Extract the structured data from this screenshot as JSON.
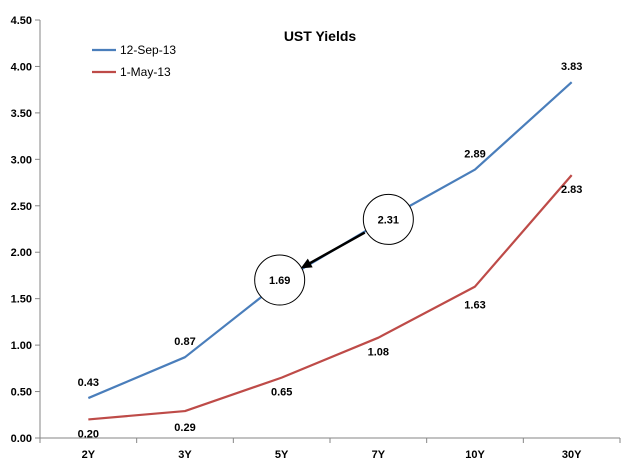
{
  "chart_data": {
    "type": "line",
    "title": "UST Yields",
    "xlabel": "",
    "ylabel": "",
    "categories": [
      "2Y",
      "3Y",
      "5Y",
      "7Y",
      "10Y",
      "30Y"
    ],
    "ylim": [
      0,
      4.5
    ],
    "yticks": [
      "0.00",
      "0.50",
      "1.00",
      "1.50",
      "2.00",
      "2.50",
      "3.00",
      "3.50",
      "4.00",
      "4.50"
    ],
    "grid": false,
    "legend_position": "top-left",
    "series": [
      {
        "name": "12-Sep-13",
        "color": "#4a7ebb",
        "values": [
          0.43,
          0.87,
          1.69,
          2.31,
          2.89,
          3.83
        ],
        "labels": [
          "0.43",
          "0.87",
          "1.69",
          "2.31",
          "2.89",
          "3.83"
        ]
      },
      {
        "name": "1-May-13",
        "color": "#be4b48",
        "values": [
          0.2,
          0.29,
          0.65,
          1.08,
          1.63,
          2.83
        ],
        "labels": [
          "0.20",
          "0.29",
          "0.65",
          "1.08",
          "1.63",
          "2.83"
        ]
      }
    ],
    "annotations": {
      "circled_points": [
        {
          "series": 0,
          "category": "5Y"
        },
        {
          "series": 0,
          "category": "7Y"
        }
      ],
      "arrow": {
        "from_category": "7Y",
        "to_category": "5Y",
        "series": 0
      }
    }
  }
}
